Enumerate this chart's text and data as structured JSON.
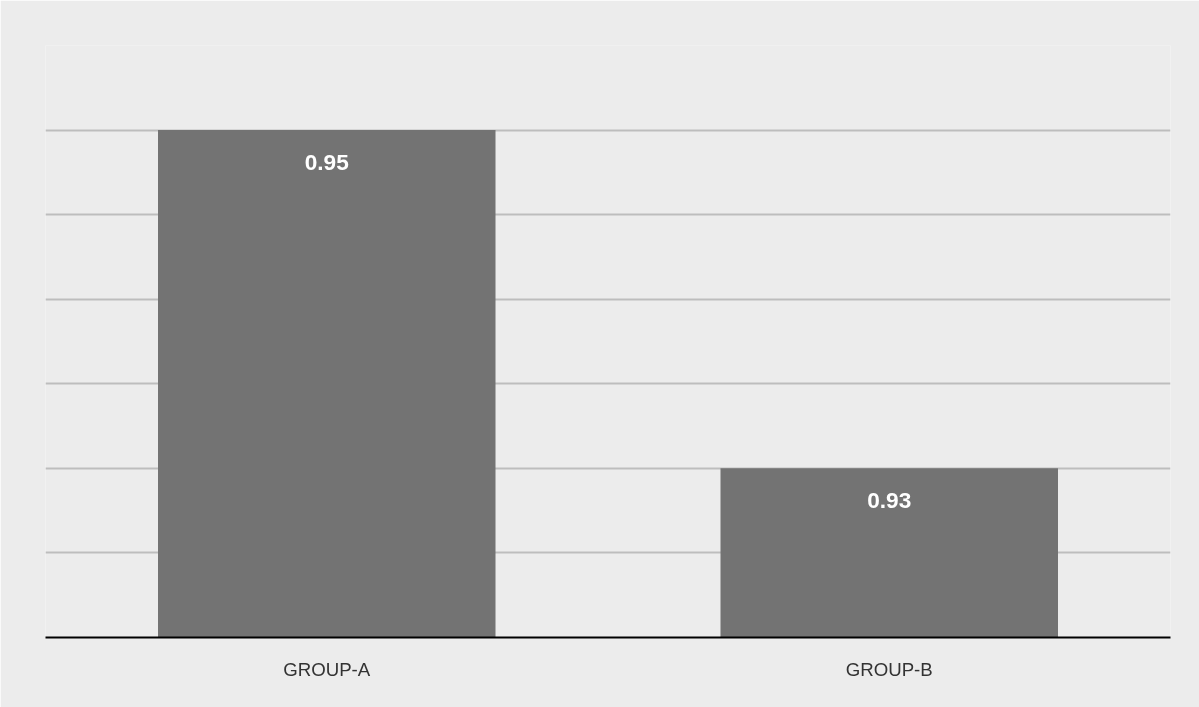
{
  "chart_data": {
    "type": "bar",
    "categories": [
      "GROUP-A",
      "GROUP-B"
    ],
    "values": [
      0.95,
      0.93
    ],
    "color": "#737373",
    "data_labels": true,
    "ylim": [
      0.92,
      0.955
    ],
    "yticks": [
      {
        "value": 0.92,
        "label": null
      },
      {
        "value": 0.925,
        "label": null
      },
      {
        "value": 0.93,
        "label": null
      },
      {
        "value": 0.935,
        "label": null
      },
      {
        "value": 0.94,
        "label": null
      },
      {
        "value": 0.945,
        "label": null
      },
      {
        "value": 0.95,
        "label": null
      },
      {
        "value": 0.955,
        "label": null
      }
    ],
    "tick_labels": "x",
    "grid": "y"
  }
}
